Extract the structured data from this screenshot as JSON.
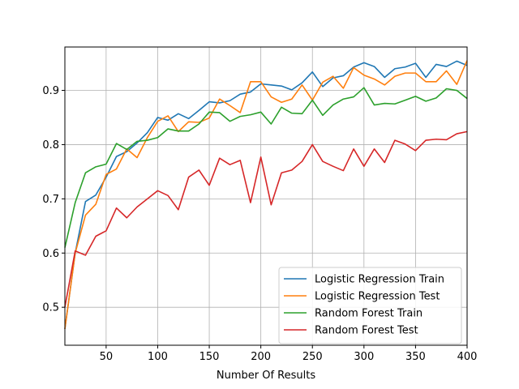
{
  "chart_data": {
    "type": "line",
    "title": "",
    "xlabel": "Number Of Results",
    "ylabel": "",
    "xlim": [
      10,
      400
    ],
    "ylim": [
      0.43,
      0.98
    ],
    "xticks": [
      50,
      100,
      150,
      200,
      250,
      300,
      350,
      400
    ],
    "yticks": [
      0.5,
      0.6,
      0.7,
      0.8,
      0.9
    ],
    "grid": true,
    "legend_position": "bottom-right",
    "x": [
      10,
      20,
      30,
      40,
      50,
      60,
      70,
      80,
      90,
      100,
      110,
      120,
      130,
      140,
      150,
      160,
      170,
      180,
      190,
      200,
      210,
      220,
      230,
      240,
      250,
      260,
      270,
      280,
      290,
      300,
      310,
      320,
      330,
      340,
      350,
      360,
      370,
      380,
      390,
      400
    ],
    "series": [
      {
        "name": "Logistic Regression Train",
        "color": "#1f77b4",
        "values": [
          0.46,
          0.6,
          0.695,
          0.707,
          0.74,
          0.778,
          0.787,
          0.803,
          0.822,
          0.85,
          0.845,
          0.857,
          0.848,
          0.863,
          0.879,
          0.877,
          0.881,
          0.893,
          0.897,
          0.912,
          0.91,
          0.908,
          0.901,
          0.914,
          0.934,
          0.907,
          0.923,
          0.927,
          0.943,
          0.951,
          0.944,
          0.924,
          0.94,
          0.943,
          0.95,
          0.924,
          0.948,
          0.944,
          0.954,
          0.946
        ]
      },
      {
        "name": "Logistic Regression Test",
        "color": "#ff7f0e",
        "values": [
          0.46,
          0.6,
          0.67,
          0.69,
          0.745,
          0.755,
          0.792,
          0.776,
          0.813,
          0.843,
          0.853,
          0.824,
          0.842,
          0.841,
          0.849,
          0.884,
          0.872,
          0.859,
          0.916,
          0.916,
          0.888,
          0.878,
          0.884,
          0.91,
          0.882,
          0.915,
          0.926,
          0.904,
          0.942,
          0.928,
          0.921,
          0.91,
          0.926,
          0.932,
          0.932,
          0.916,
          0.916,
          0.936,
          0.911,
          0.955
        ]
      },
      {
        "name": "Random Forest Train",
        "color": "#2ca02c",
        "values": [
          0.61,
          0.693,
          0.748,
          0.759,
          0.764,
          0.802,
          0.791,
          0.806,
          0.808,
          0.813,
          0.829,
          0.825,
          0.825,
          0.838,
          0.86,
          0.859,
          0.843,
          0.852,
          0.855,
          0.86,
          0.838,
          0.869,
          0.858,
          0.857,
          0.882,
          0.854,
          0.873,
          0.884,
          0.888,
          0.905,
          0.873,
          0.876,
          0.875,
          0.882,
          0.889,
          0.88,
          0.886,
          0.903,
          0.9,
          0.885
        ]
      },
      {
        "name": "Random Forest Test",
        "color": "#d62728",
        "values": [
          0.5,
          0.604,
          0.596,
          0.631,
          0.641,
          0.683,
          0.665,
          0.685,
          0.7,
          0.715,
          0.706,
          0.68,
          0.74,
          0.753,
          0.725,
          0.775,
          0.763,
          0.771,
          0.693,
          0.777,
          0.689,
          0.748,
          0.753,
          0.769,
          0.8,
          0.769,
          0.76,
          0.752,
          0.792,
          0.76,
          0.792,
          0.767,
          0.808,
          0.801,
          0.789,
          0.808,
          0.81,
          0.809,
          0.82,
          0.824
        ]
      }
    ]
  }
}
